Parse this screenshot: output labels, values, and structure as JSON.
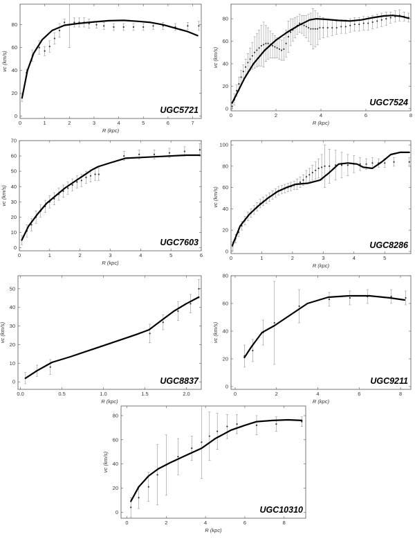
{
  "chart_data": [
    {
      "type": "scatter",
      "title": "UGC5721",
      "xlabel": "R (kpc)",
      "ylabel": "vc (km/s)",
      "xlim": [
        0,
        7.35
      ],
      "ylim": [
        -2,
        98
      ],
      "xticks": [
        0,
        1,
        2,
        3,
        4,
        5,
        6,
        7
      ],
      "yticks": [
        0,
        20,
        40,
        60,
        80
      ],
      "model": {
        "name": "",
        "x": [
          0.08,
          0.3,
          0.55,
          0.9,
          1.3,
          1.8,
          2.3,
          3.0,
          3.6,
          4.2,
          4.8,
          5.3,
          5.8,
          6.3,
          6.8,
          7.2
        ],
        "y": [
          16,
          40,
          55,
          67,
          75,
          79.5,
          81,
          82.5,
          83.5,
          83.8,
          83,
          82,
          80,
          77,
          74,
          70.5
        ]
      },
      "observed": {
        "x": [
          0.08,
          0.26,
          0.5,
          0.78,
          1.0,
          1.2,
          1.4,
          1.6,
          1.8,
          2.0,
          2.2,
          2.4,
          2.6,
          2.8,
          3.1,
          3.4,
          3.8,
          4.2,
          4.6,
          5.0,
          5.4,
          5.8,
          6.3,
          6.8,
          7.25
        ],
        "y": [
          16,
          38,
          53,
          60,
          57,
          61,
          68,
          75,
          82,
          80,
          82,
          82,
          82,
          81,
          80,
          79,
          78,
          78,
          78,
          78,
          79,
          79,
          78,
          79,
          79
        ],
        "err": [
          3,
          3,
          5,
          6,
          4,
          5,
          5,
          6,
          3,
          20,
          4,
          4,
          4,
          4,
          3,
          3,
          3,
          3,
          3,
          3,
          3,
          3,
          3,
          3,
          4
        ]
      }
    },
    {
      "type": "scatter",
      "title": "UGC7524",
      "xlabel": "R (kpc)",
      "ylabel": "vc (km/s)",
      "xlim": [
        0,
        8.0
      ],
      "ylim": [
        -2,
        93
      ],
      "xticks": [
        0,
        2,
        4,
        6,
        8
      ],
      "yticks": [
        0,
        20,
        40,
        60,
        80
      ],
      "model": {
        "name": "",
        "x": [
          0.05,
          0.3,
          0.6,
          1.0,
          1.5,
          2.0,
          2.5,
          3.0,
          3.5,
          3.8,
          4.2,
          4.8,
          5.3,
          5.8,
          6.3,
          6.8,
          7.2,
          7.6,
          7.9
        ],
        "y": [
          5,
          15,
          27,
          40,
          52,
          61,
          68,
          74,
          79,
          80,
          79.5,
          78.5,
          78,
          79,
          81,
          82.5,
          83,
          82,
          80.5
        ]
      },
      "observed": {
        "x": [
          0.05,
          0.15,
          0.25,
          0.35,
          0.45,
          0.55,
          0.65,
          0.75,
          0.85,
          0.95,
          1.05,
          1.15,
          1.25,
          1.35,
          1.45,
          1.55,
          1.65,
          1.75,
          1.85,
          1.95,
          2.05,
          2.15,
          2.25,
          2.35,
          2.45,
          2.55,
          2.65,
          2.75,
          2.85,
          2.95,
          3.05,
          3.15,
          3.25,
          3.35,
          3.45,
          3.55,
          3.65,
          3.75,
          3.85,
          3.95,
          4.1,
          4.3,
          4.5,
          4.7,
          4.9,
          5.1,
          5.3,
          5.5,
          5.7,
          5.9,
          6.1,
          6.3,
          6.5,
          6.7,
          6.9,
          7.1,
          7.3,
          7.5,
          7.7,
          7.9
        ],
        "y": [
          2,
          8,
          16,
          22,
          28,
          33,
          37,
          41,
          44,
          47,
          50,
          52,
          54,
          56,
          57,
          58,
          58,
          57,
          56,
          55,
          54,
          53,
          52,
          53,
          58,
          64,
          68,
          70,
          72,
          74,
          76,
          75,
          74,
          73,
          72,
          71,
          71,
          71,
          71,
          72,
          72,
          72,
          72,
          72,
          73,
          73,
          74,
          75,
          75,
          76,
          76,
          77,
          78,
          79,
          80,
          81,
          82,
          83,
          82,
          81
        ],
        "err": [
          4,
          5,
          5,
          6,
          6,
          6,
          7,
          8,
          10,
          12,
          14,
          15,
          16,
          18,
          20,
          16,
          14,
          12,
          11,
          10,
          9,
          9,
          9,
          10,
          12,
          14,
          12,
          10,
          9,
          8,
          8,
          8,
          9,
          10,
          12,
          14,
          18,
          16,
          14,
          10,
          9,
          8,
          7,
          6,
          6,
          6,
          6,
          6,
          6,
          6,
          6,
          6,
          6,
          6,
          6,
          5,
          5,
          5,
          4,
          4
        ]
      }
    },
    {
      "type": "scatter",
      "title": "UGC7603",
      "xlabel": "R (kpc)",
      "ylabel": "vc (km/s)",
      "xlim": [
        0,
        6.0
      ],
      "ylim": [
        -2,
        70
      ],
      "xticks": [
        0,
        1,
        2,
        3,
        4,
        5,
        6
      ],
      "yticks": [
        0,
        10,
        20,
        30,
        40,
        50,
        60,
        70
      ],
      "model": {
        "name": "",
        "x": [
          0.08,
          0.3,
          0.6,
          0.9,
          1.2,
          1.5,
          1.8,
          2.1,
          2.4,
          2.6,
          3.0,
          3.5,
          4.0,
          4.5,
          5.0,
          5.5,
          5.95
        ],
        "y": [
          5,
          14,
          22,
          29,
          34,
          39,
          43,
          47,
          51,
          53,
          55.5,
          58.5,
          59,
          59.5,
          60,
          60.5,
          60.5
        ]
      },
      "observed": {
        "x": [
          0.08,
          0.25,
          0.4,
          0.55,
          0.7,
          0.85,
          1.0,
          1.15,
          1.3,
          1.45,
          1.6,
          1.75,
          1.9,
          2.05,
          2.2,
          2.35,
          2.5,
          2.62,
          3.45,
          3.95,
          4.45,
          4.95,
          5.45,
          5.95
        ],
        "y": [
          5,
          11,
          15,
          20,
          24,
          27,
          30,
          32,
          35,
          37,
          39,
          41,
          43,
          44,
          46,
          47,
          48,
          48,
          60,
          61,
          61,
          62,
          63,
          64
        ],
        "err": [
          3,
          4,
          4,
          4,
          4,
          4,
          4,
          4,
          4,
          4,
          4,
          4,
          4,
          4,
          4,
          4,
          4,
          4,
          3,
          3,
          3,
          3,
          3,
          4
        ]
      }
    },
    {
      "type": "scatter",
      "title": "UGC8286",
      "xlabel": "R (kpc)",
      "ylabel": "vc (km/s)",
      "xlim": [
        0,
        5.85
      ],
      "ylim": [
        -2,
        104
      ],
      "xticks": [
        0,
        1,
        2,
        3,
        4,
        5
      ],
      "yticks": [
        0,
        20,
        40,
        60,
        80,
        100
      ],
      "model": {
        "name": "",
        "x": [
          0.05,
          0.3,
          0.6,
          0.9,
          1.2,
          1.5,
          1.8,
          2.1,
          2.5,
          2.9,
          3.2,
          3.5,
          3.8,
          4.1,
          4.3,
          4.6,
          4.9,
          5.2,
          5.5,
          5.8
        ],
        "y": [
          6,
          24,
          35,
          43,
          50,
          56,
          60,
          63,
          64,
          67,
          74,
          82,
          83,
          82,
          79,
          78,
          84,
          91,
          93,
          93
        ]
      },
      "observed": {
        "x": [
          0.05,
          0.15,
          0.25,
          0.35,
          0.45,
          0.55,
          0.65,
          0.75,
          0.85,
          0.95,
          1.05,
          1.15,
          1.25,
          1.35,
          1.45,
          1.55,
          1.65,
          1.75,
          1.85,
          1.95,
          2.05,
          2.15,
          2.25,
          2.35,
          2.45,
          2.55,
          2.65,
          2.75,
          2.85,
          2.95,
          3.05,
          3.2,
          3.4,
          3.6,
          3.8,
          4.0,
          4.2,
          4.4,
          4.6,
          4.8,
          5.0,
          5.3,
          5.8
        ],
        "y": [
          5,
          12,
          18,
          24,
          29,
          33,
          36,
          39,
          42,
          45,
          47,
          49,
          51,
          53,
          55,
          57,
          58,
          59,
          60,
          61,
          62,
          63,
          65,
          67,
          70,
          72,
          74,
          76,
          78,
          79,
          80,
          80,
          81,
          81,
          81,
          82,
          82,
          82,
          83,
          83,
          83,
          84,
          84
        ],
        "err": [
          4,
          4,
          4,
          4,
          4,
          4,
          4,
          4,
          4,
          4,
          4,
          4,
          4,
          4,
          4,
          4,
          4,
          4,
          4,
          4,
          4,
          5,
          5,
          5,
          6,
          6,
          7,
          8,
          9,
          12,
          20,
          16,
          14,
          12,
          10,
          8,
          6,
          5,
          5,
          4,
          4,
          4,
          4
        ]
      }
    },
    {
      "type": "scatter",
      "title": "UGC8837",
      "xlabel": "R (kpc)",
      "ylabel": "vc (km/s)",
      "xlim": [
        -0.03,
        2.18
      ],
      "ylim": [
        -4,
        57
      ],
      "xticks": [
        0.0,
        0.5,
        1.0,
        1.5,
        2.0
      ],
      "yticks": [
        0,
        10,
        20,
        30,
        40,
        50
      ],
      "model": {
        "name": "",
        "x": [
          0.06,
          0.2,
          0.38,
          0.6,
          0.9,
          1.2,
          1.4,
          1.55,
          1.7,
          1.85,
          2.0,
          2.15
        ],
        "y": [
          2,
          6,
          10.5,
          13.5,
          18,
          22.5,
          25.5,
          28,
          33,
          38,
          42,
          45.5
        ]
      },
      "observed": {
        "x": [
          0.06,
          0.2,
          0.36,
          1.56,
          1.72,
          1.9,
          2.05,
          2.15
        ],
        "y": [
          2,
          6,
          8,
          26,
          32,
          38,
          42,
          50
        ],
        "err": [
          3,
          3,
          4,
          5,
          4,
          5,
          5,
          5
        ]
      }
    },
    {
      "type": "scatter",
      "title": "UGC9211",
      "xlabel": "R (kpc)",
      "ylabel": "vc (km/s)",
      "xlim": [
        -0.2,
        8.5
      ],
      "ylim": [
        -2,
        80
      ],
      "xticks": [
        0,
        2,
        4,
        6,
        8
      ],
      "yticks": [
        0,
        20,
        40,
        60,
        80
      ],
      "model": {
        "name": "",
        "x": [
          0.45,
          0.8,
          1.3,
          1.9,
          2.6,
          3.5,
          4.5,
          5.5,
          6.5,
          7.5,
          8.2
        ],
        "y": [
          21,
          29,
          39,
          44,
          51,
          60,
          64.5,
          65.5,
          65.5,
          64,
          62.5
        ]
      },
      "observed": {
        "x": [
          0.45,
          0.85,
          1.35,
          1.9,
          3.1,
          4.55,
          5.55,
          6.4,
          7.55,
          8.25
        ],
        "y": [
          22,
          26,
          39,
          46,
          58,
          63,
          64,
          65,
          65,
          64
        ],
        "err": [
          8,
          8,
          9,
          30,
          12,
          5,
          5,
          5,
          5,
          5
        ]
      }
    },
    {
      "type": "scatter",
      "title": "UGC10310",
      "xlabel": "R (kpc)",
      "ylabel": "vc (km/s)",
      "xlim": [
        -0.3,
        9.1
      ],
      "ylim": [
        -5,
        88
      ],
      "xticks": [
        0,
        2,
        4,
        6,
        8
      ],
      "yticks": [
        0,
        20,
        40,
        60,
        80
      ],
      "model": {
        "name": "",
        "x": [
          0.2,
          0.6,
          1.1,
          1.6,
          2.2,
          3.0,
          3.8,
          4.5,
          5.3,
          6.0,
          6.6,
          7.4,
          8.2,
          8.9
        ],
        "y": [
          9,
          21,
          30,
          36,
          41,
          47,
          53,
          61,
          68,
          72,
          75,
          76,
          76.5,
          76
        ]
      },
      "observed": {
        "x": [
          0.2,
          0.6,
          1.1,
          1.55,
          2.0,
          2.6,
          3.3,
          3.8,
          4.2,
          4.6,
          5.1,
          5.6,
          6.6,
          7.6,
          8.9
        ],
        "y": [
          4,
          12,
          21,
          31,
          39,
          46,
          53,
          58,
          63,
          67,
          71,
          73,
          72,
          73,
          75
        ],
        "err": [
          8,
          9,
          12,
          25,
          25,
          15,
          10,
          30,
          20,
          15,
          10,
          8,
          8,
          6,
          4
        ]
      }
    }
  ]
}
